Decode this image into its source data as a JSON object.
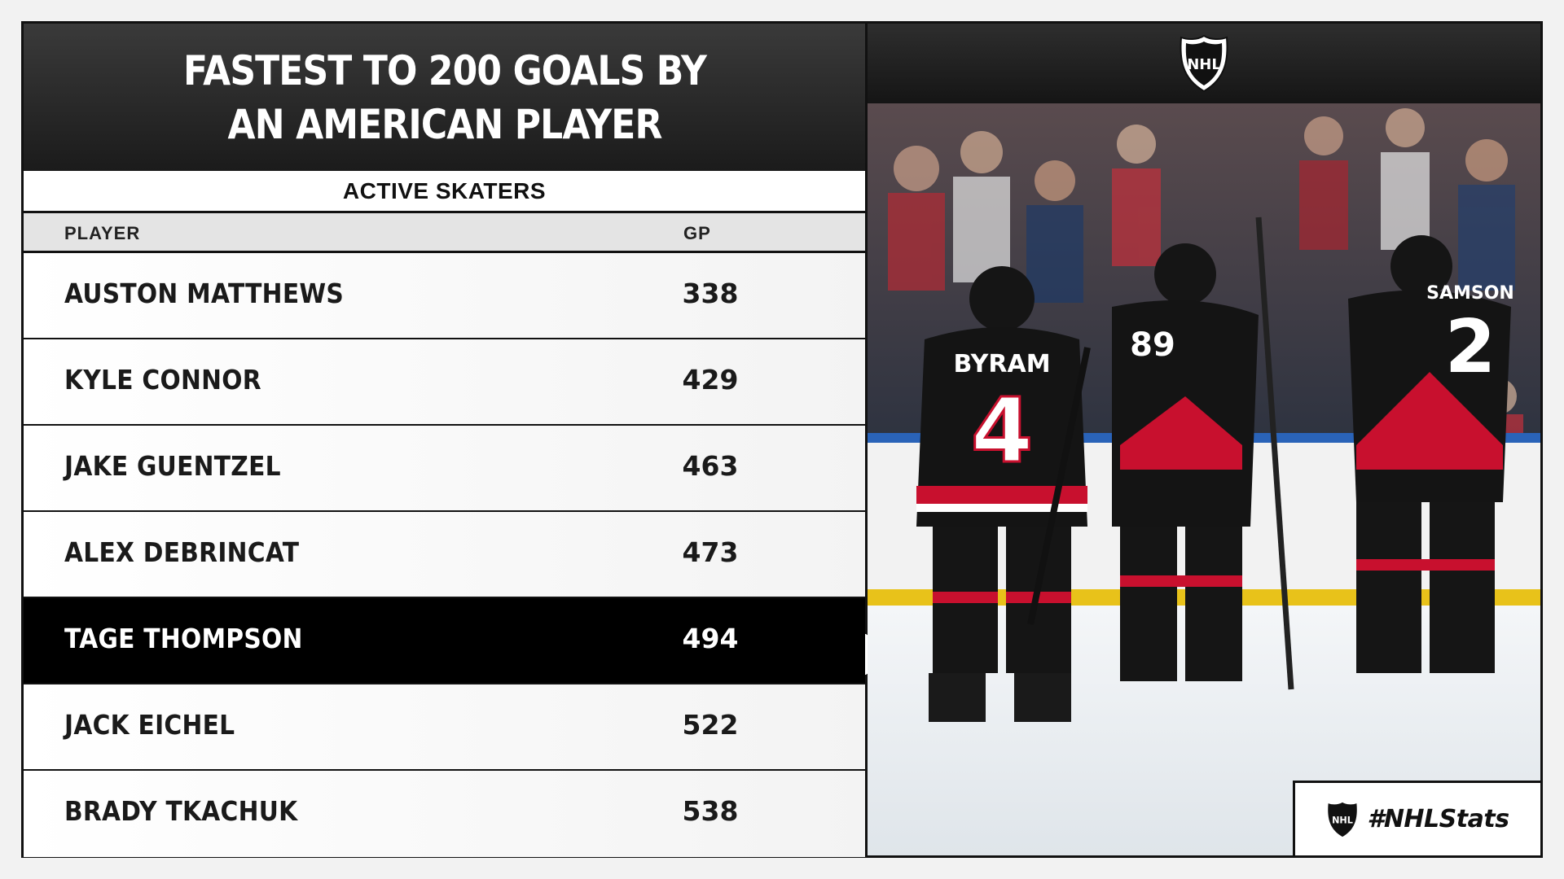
{
  "title": "FASTEST TO 200 GOALS BY AN AMERICAN PLAYER",
  "subtitle": "ACTIVE SKATERS",
  "columns": {
    "player": "PLAYER",
    "gp": "GP"
  },
  "rows": [
    {
      "name": "AUSTON MATTHEWS",
      "gp": "338"
    },
    {
      "name": "KYLE CONNOR",
      "gp": "429"
    },
    {
      "name": "JAKE GUENTZEL",
      "gp": "463"
    },
    {
      "name": "ALEX DEBRINCAT",
      "gp": "473"
    },
    {
      "name": "TAGE THOMPSON",
      "gp": "494",
      "highlighted": true
    },
    {
      "name": "JACK EICHEL",
      "gp": "522"
    },
    {
      "name": "BRADY TKACHUK",
      "gp": "538"
    }
  ],
  "logo_text": "NHL",
  "hashtag": "#NHLStats",
  "photo": {
    "jersey_names": [
      "BYRAM",
      "SAMSON"
    ],
    "jersey_numbers": [
      "4",
      "89",
      "2"
    ]
  },
  "colors": {
    "accent_red": "#c8102e",
    "jersey_black": "#111111",
    "highlight_row": "#000000",
    "ice": "#e9eef3",
    "boards_yellow": "#e8c21a"
  }
}
